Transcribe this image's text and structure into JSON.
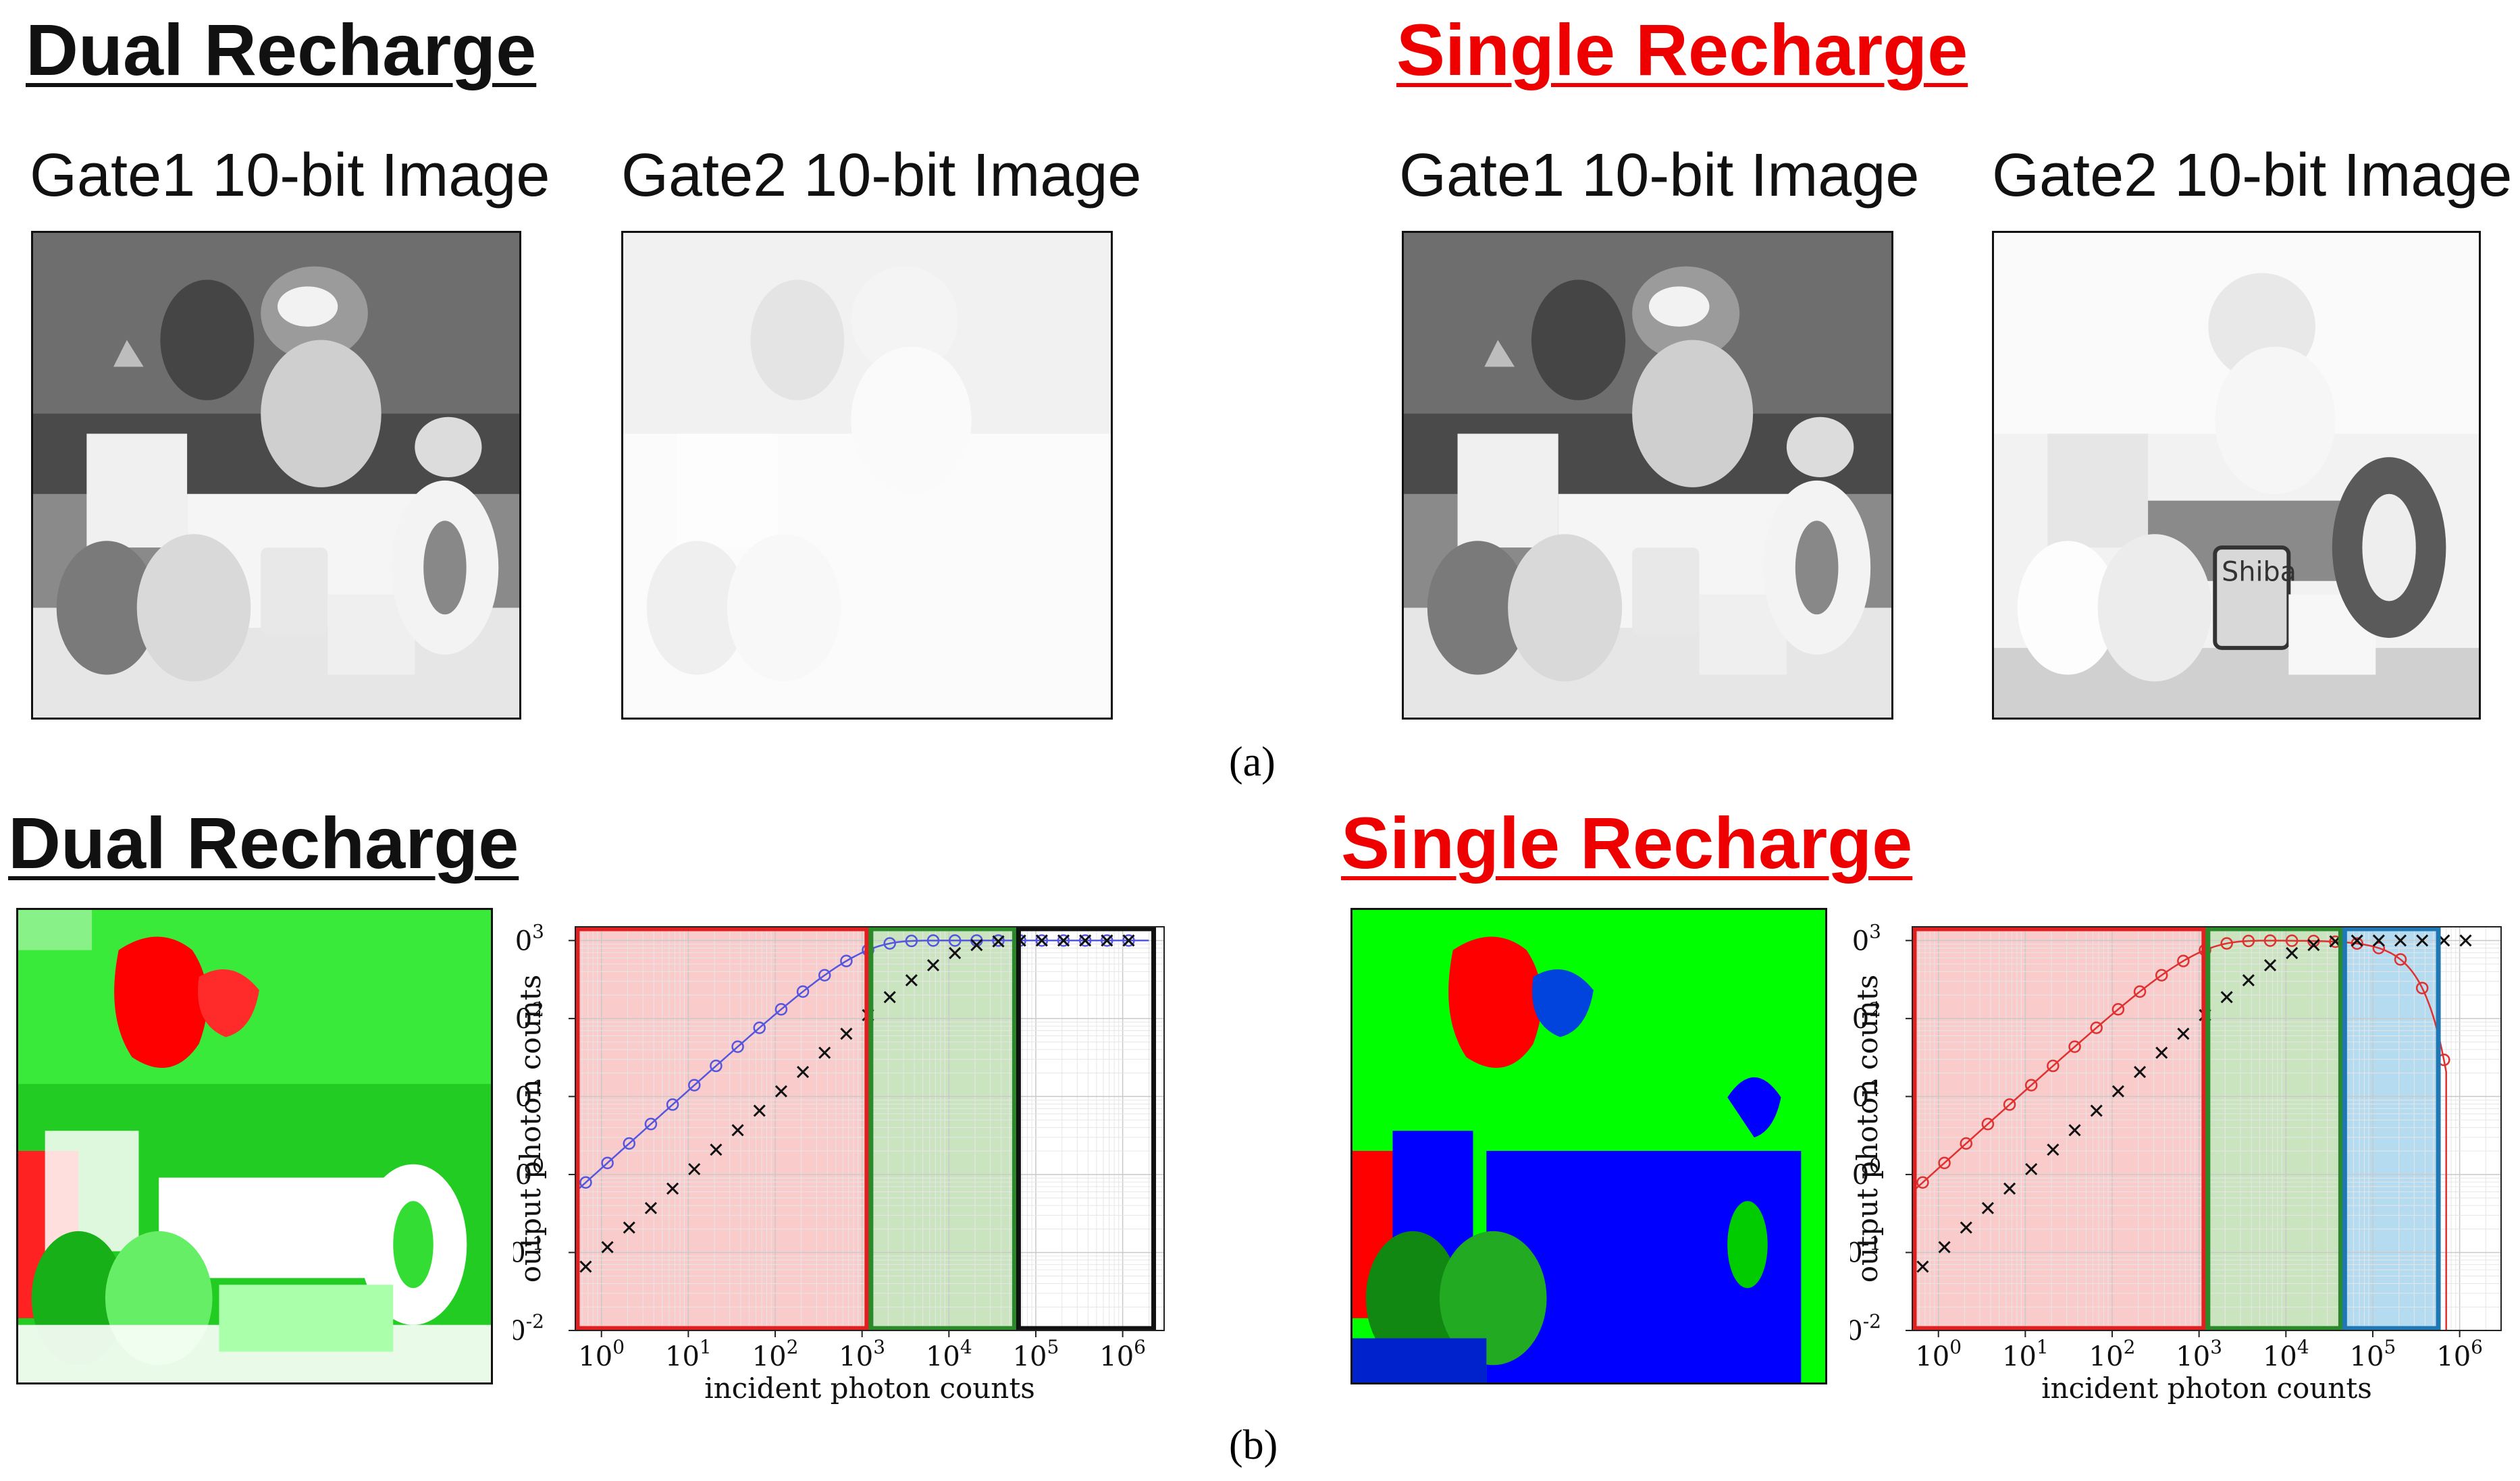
{
  "panel_a": {
    "left_heading": "Dual Recharge",
    "right_heading": "Single Recharge",
    "images": [
      {
        "title": "Gate1 10-bit Image"
      },
      {
        "title": "Gate2 10-bit Image"
      },
      {
        "title": "Gate1 10-bit Image"
      },
      {
        "title": "Gate2 10-bit Image",
        "mug_text": "Shiba"
      }
    ],
    "label": "(a)"
  },
  "panel_b": {
    "left_heading": "Dual Recharge",
    "right_heading": "Single Recharge",
    "label": "(b)"
  },
  "colors": {
    "heading_black": "#111111",
    "heading_red": "#ee0000",
    "region_red": "#e02020",
    "region_green": "#2a8a2a",
    "region_black": "#111111",
    "region_blue": "#1f78b4",
    "map_green": "#00ff00",
    "map_red": "#ff0000",
    "map_blue": "#0000ff"
  },
  "chart_data": [
    {
      "type": "line",
      "xlabel": "incident photon counts",
      "ylabel": "output photon counts",
      "x_scale": "log",
      "y_scale": "log",
      "xlim": [
        0.5,
        3000000
      ],
      "ylim": [
        0.01,
        1500
      ],
      "x_ticks": [
        "10^0",
        "10^1",
        "10^2",
        "10^3",
        "10^4",
        "10^5",
        "10^6"
      ],
      "y_ticks": [
        "10^-2",
        "10^-1",
        "10^0",
        "10^1",
        "10^2",
        "10^3"
      ],
      "grid": true,
      "regions": [
        {
          "x": [
            0.5,
            1200
          ],
          "color": "red"
        },
        {
          "x": [
            1200,
            60000
          ],
          "color": "green"
        },
        {
          "x": [
            60000,
            2400000
          ],
          "color": "black"
        }
      ],
      "series": [
        {
          "marker": "o",
          "color": "#5555dd",
          "saturation": 1000,
          "gain": 1.2,
          "extends_to": 2000000
        },
        {
          "marker": "x",
          "color": "#111111",
          "saturation": 1000,
          "gain": 0.1,
          "extends_to": 2000000
        }
      ]
    },
    {
      "type": "line",
      "xlabel": "incident photon counts",
      "ylabel": "output photon counts",
      "x_scale": "log",
      "y_scale": "log",
      "xlim": [
        0.5,
        3000000
      ],
      "ylim": [
        0.01,
        1500
      ],
      "x_ticks": [
        "10^0",
        "10^1",
        "10^2",
        "10^3",
        "10^4",
        "10^5",
        "10^6"
      ],
      "y_ticks": [
        "10^-2",
        "10^-1",
        "10^0",
        "10^1",
        "10^2",
        "10^3"
      ],
      "grid": true,
      "regions": [
        {
          "x": [
            0.5,
            1200
          ],
          "color": "red"
        },
        {
          "x": [
            1200,
            45000
          ],
          "color": "green"
        },
        {
          "x": [
            45000,
            600000
          ],
          "color": "blue"
        }
      ],
      "series": [
        {
          "marker": "o",
          "color": "#e03030",
          "saturation": 1000,
          "gain": 1.2,
          "rolloff": 300000,
          "extends_to": 700000
        },
        {
          "marker": "x",
          "color": "#111111",
          "saturation": 1000,
          "gain": 0.1,
          "extends_to": 2000000
        }
      ]
    }
  ]
}
